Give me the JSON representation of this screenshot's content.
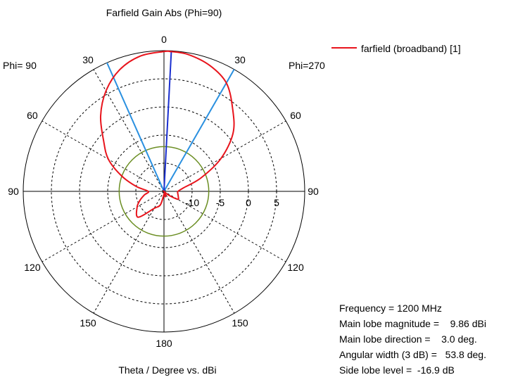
{
  "chart_data": {
    "type": "polar",
    "title": "Farfield Gain Abs (Phi=90)",
    "xlabel": "Theta / Degree vs. dBi",
    "left_label": "Phi= 90",
    "right_label": "Phi=270",
    "radial_range_dbi": [
      -15,
      10
    ],
    "radial_ticks": [
      "-10",
      "-5",
      "0",
      "5"
    ],
    "angle_ticks": [
      {
        "theta": 0,
        "label": "0"
      },
      {
        "theta": 30,
        "label": "30"
      },
      {
        "theta": -30,
        "label": "30"
      },
      {
        "theta": 60,
        "label": "60"
      },
      {
        "theta": -60,
        "label": "60"
      },
      {
        "theta": 90,
        "label": "90"
      },
      {
        "theta": -90,
        "label": "90"
      },
      {
        "theta": 120,
        "label": "120"
      },
      {
        "theta": -120,
        "label": "120"
      },
      {
        "theta": 150,
        "label": "150"
      },
      {
        "theta": -150,
        "label": "150"
      },
      {
        "theta": 180,
        "label": "180"
      }
    ],
    "grid": true,
    "legend": {
      "position": "top-right",
      "label": "farfield (broadband) [1]",
      "color": "#e8141c"
    },
    "series": [
      {
        "name": "farfield (broadband) [1]",
        "color": "#e8141c",
        "theta_deg": [
          -180,
          -165,
          -150,
          -135,
          -120,
          -110,
          -100,
          -90,
          -80,
          -70,
          -60,
          -50,
          -40,
          -30,
          -20,
          -10,
          0,
          3,
          10,
          20,
          30,
          40,
          50,
          60,
          70,
          80,
          90,
          100,
          110,
          120,
          130,
          135,
          140,
          150,
          165,
          180
        ],
        "gain_dbi": [
          -14.5,
          -12.5,
          -11.5,
          -8.5,
          -9.5,
          -10.5,
          -11.5,
          -12.2,
          -10,
          -7,
          -3.6,
          -1,
          2.5,
          5.6,
          8,
          9.4,
          9.85,
          9.86,
          9.7,
          8.8,
          7.2,
          4,
          1,
          -3.3,
          -8,
          -11.5,
          -12.5,
          -12.5,
          -12.3,
          -12.2,
          -14,
          -15,
          -15,
          -14.5,
          -14,
          -14.5
        ]
      }
    ],
    "markers": {
      "main_lobe_direction_deg": 3.0,
      "main_lobe_color": "#1a2fd0",
      "beamwidth_edges_deg": [
        -23.9,
        29.9
      ],
      "beamwidth_color": "#2a90e0",
      "minus3db_circle_dbi": 6.86,
      "sidelobe_circle_dbi": -7.04,
      "sidelobe_color": "#6b8e23"
    }
  },
  "info": {
    "frequency": "Frequency = 1200 MHz",
    "magnitude": "Main lobe magnitude =    9.86 dBi",
    "direction": "Main lobe direction =    3.0 deg.",
    "width": "Angular width (3 dB) =   53.8 deg.",
    "sidelobe": "Side lobe level =  -16.9 dB"
  }
}
